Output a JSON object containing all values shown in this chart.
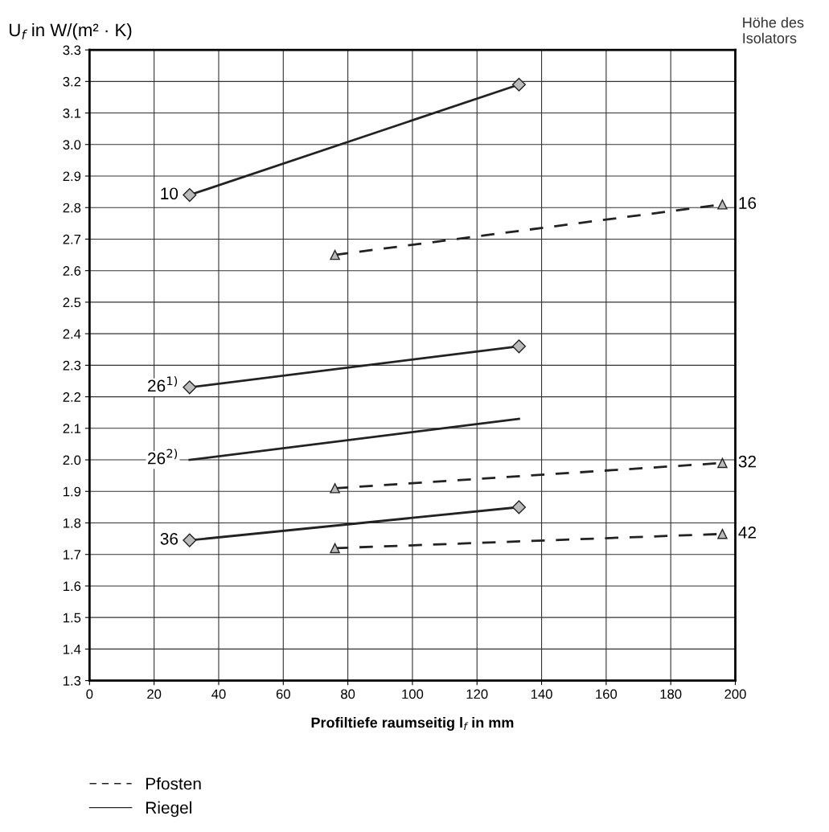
{
  "chart_data": {
    "type": "line",
    "ylabel": "U$_{f}$ in W/(m² · K)",
    "xlabel": "Profiltiefe raumseitig l$_{f}$ in mm",
    "legend_title": "Höhe des\nIsolators",
    "annotations": [
      "Pfosten",
      "Riegel"
    ],
    "xlim": [
      0,
      200
    ],
    "xticks": [
      0,
      20,
      40,
      60,
      80,
      100,
      120,
      140,
      160,
      180,
      200
    ],
    "ylim": [
      1.3,
      3.3
    ],
    "yticks": [
      1.3,
      1.4,
      1.5,
      1.6,
      1.7,
      1.8,
      1.9,
      {
        "value": 2.0,
        "label": "2.0"
      },
      2.1,
      2.2,
      2.3,
      2.4,
      2.5,
      2.6,
      2.7,
      2.8,
      2.9,
      {
        "value": 3.0,
        "label": "3.0"
      },
      3.1,
      3.2,
      3.3
    ],
    "grid": true,
    "series": [
      {
        "name": "10",
        "color": "#222222",
        "x": [
          31,
          133
        ],
        "values": [
          2.84,
          3.19
        ],
        "line_style": "solid",
        "marker": "diamond"
      },
      {
        "name": "16",
        "color": "#222222",
        "x": [
          76,
          196
        ],
        "values": [
          2.65,
          2.81
        ],
        "line_style": "dashed",
        "marker": "triangle"
      },
      {
        "name": "26$^{1)}$",
        "color": "#222222",
        "x": [
          31,
          133
        ],
        "values": [
          2.23,
          2.36
        ],
        "line_style": "solid",
        "marker": "diamond"
      },
      {
        "name": "26$^{2)}$",
        "color": "#222222",
        "x": [
          31,
          133
        ],
        "values": [
          2.0,
          2.13
        ],
        "line_style": "solid",
        "marker": "none"
      },
      {
        "name": "32",
        "color": "#222222",
        "x": [
          76,
          196
        ],
        "values": [
          1.91,
          1.99
        ],
        "line_style": "dashed",
        "marker": "triangle"
      },
      {
        "name": "36",
        "color": "#222222",
        "x": [
          31,
          133
        ],
        "values": [
          1.745,
          1.85
        ],
        "line_style": "solid",
        "marker": "diamond"
      },
      {
        "name": "42",
        "color": "#222222",
        "x": [
          76,
          196
        ],
        "values": [
          1.72,
          1.765
        ],
        "line_style": "dashed",
        "marker": "triangle"
      }
    ]
  }
}
